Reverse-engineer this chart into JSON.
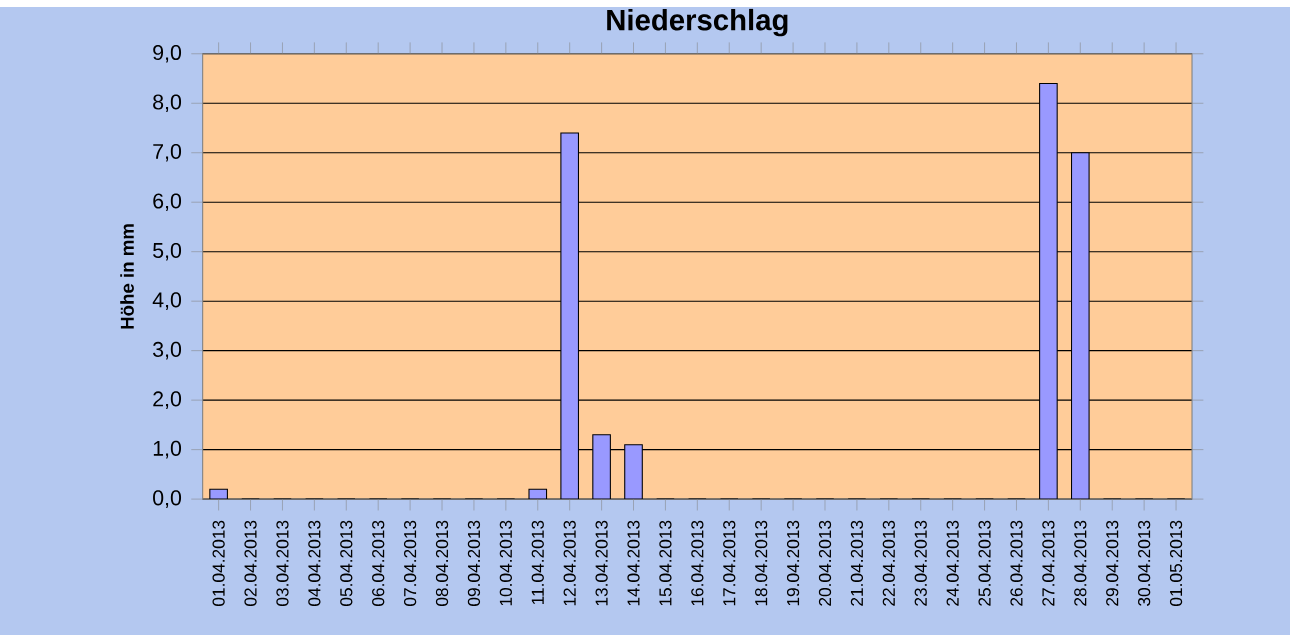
{
  "chart_data": {
    "type": "bar",
    "title": "Niederschlag",
    "ylabel": "Höhe in mm",
    "categories": [
      "01.04.2013",
      "02.04.2013",
      "03.04.2013",
      "04.04.2013",
      "05.04.2013",
      "06.04.2013",
      "07.04.2013",
      "08.04.2013",
      "09.04.2013",
      "10.04.2013",
      "11.04.2013",
      "12.04.2013",
      "13.04.2013",
      "14.04.2013",
      "15.04.2013",
      "16.04.2013",
      "17.04.2013",
      "18.04.2013",
      "19.04.2013",
      "20.04.2013",
      "21.04.2013",
      "22.04.2013",
      "23.04.2013",
      "24.04.2013",
      "25.04.2013",
      "26.04.2013",
      "27.04.2013",
      "28.04.2013",
      "29.04.2013",
      "30.04.2013",
      "01.05.2013"
    ],
    "values": [
      0.2,
      0,
      0,
      0,
      0,
      0,
      0,
      0,
      0,
      0,
      0.2,
      7.4,
      1.3,
      1.1,
      0,
      0,
      0,
      0,
      0,
      0,
      0,
      0,
      0,
      0,
      0,
      0,
      8.4,
      7.0,
      0,
      0,
      0
    ],
    "color": "#9999ff",
    "ylim": [
      0,
      9
    ],
    "yticks": [
      {
        "value": 0,
        "label": "0,0"
      },
      {
        "value": 1,
        "label": "1,0"
      },
      {
        "value": 2,
        "label": "2,0"
      },
      {
        "value": 3,
        "label": "3,0"
      },
      {
        "value": 4,
        "label": "4,0"
      },
      {
        "value": 5,
        "label": "5,0"
      },
      {
        "value": 6,
        "label": "6,0"
      },
      {
        "value": 7,
        "label": "7,0"
      },
      {
        "value": 8,
        "label": "8,0"
      },
      {
        "value": 9,
        "label": "9,0"
      }
    ],
    "grid": "y"
  }
}
